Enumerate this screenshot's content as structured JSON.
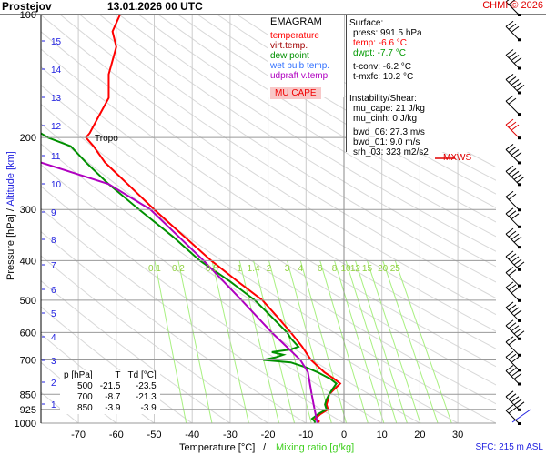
{
  "header": {
    "station": "Prostejov",
    "datetime": "13.01.2026 00 UTC",
    "credit": "CHMI © 2026"
  },
  "legend": {
    "title": "EMAGRAM",
    "items": [
      {
        "label": "temperature",
        "color": "#ff0000"
      },
      {
        "label": "virt.temp.",
        "color": "#a00000"
      },
      {
        "label": "dew point",
        "color": "#009000"
      },
      {
        "label": "wet bulb temp.",
        "color": "#3070ff"
      },
      {
        "label": "udpraft v.temp.",
        "color": "#b000c0"
      }
    ],
    "cape_label": "MU CAPE"
  },
  "surface": {
    "title": "Surface:",
    "press": "press: 991.5 hPa",
    "temp": "temp: -6.6 °C",
    "dwpt": "dwpt: -7.7 °C",
    "tconv": "t-conv: -6.2 °C",
    "tmxfc": "t-mxfc: 10.2 °C"
  },
  "instability": {
    "title": "Instability/Shear:",
    "mu_cape": "mu_cape: 21 J/kg",
    "mu_cinh": "mu_cinh: 0 J/kg",
    "bwd_06": "bwd_06: 27.3 m/s",
    "bwd_01": "bwd_01: 9.0 m/s",
    "srh_03": "srh_03: 323 m2/s2"
  },
  "table": {
    "headers": [
      "p [hPa]",
      "T",
      "Td [°C]"
    ],
    "rows": [
      [
        "500",
        "-21.5",
        "-23.5"
      ],
      [
        "700",
        "-8.7",
        "-21.3"
      ],
      [
        "850",
        "-3.9",
        "-3.9"
      ]
    ]
  },
  "annotations": {
    "tropo": "Tropo",
    "mxws": "MXWS",
    "sfc": "SFC: 215 m ASL"
  },
  "chart_data": {
    "type": "line",
    "title": "EMAGRAM",
    "xlabel": "Temperature [°C]",
    "xlabel2": "Mixing ratio [g/kg]",
    "ylabel": "Pressure [hPa]",
    "ylabel2": "Altitude [km]",
    "xlim": [
      -80,
      40
    ],
    "ylim": [
      1000,
      100
    ],
    "x_ticks": [
      "-70",
      "-60",
      "-50",
      "-40",
      "-30",
      "-20",
      "-10",
      "0",
      "10",
      "20",
      "30"
    ],
    "p_ticks": [
      "100",
      "200",
      "300",
      "400",
      "500",
      "600",
      "700",
      "850",
      "925",
      "1000"
    ],
    "km_ticks": [
      "1",
      "2",
      "3",
      "4",
      "5",
      "6",
      "7",
      "8",
      "9",
      "10",
      "11",
      "12",
      "13",
      "14",
      "15"
    ],
    "mixing_ratio_labels": [
      "0.1",
      "0.2",
      "0.5",
      "1",
      "1.4",
      "2",
      "3",
      "4",
      "6",
      "8",
      "10",
      "12",
      "15",
      "20",
      "25"
    ],
    "series": [
      {
        "name": "temperature",
        "color": "#ff0000",
        "points": [
          [
            1000,
            -7
          ],
          [
            990,
            -6.6
          ],
          [
            975,
            -7.6
          ],
          [
            950,
            -6.2
          ],
          [
            925,
            -4.2
          ],
          [
            900,
            -4.6
          ],
          [
            875,
            -4.2
          ],
          [
            850,
            -3.9
          ],
          [
            825,
            -2.5
          ],
          [
            800,
            -1
          ],
          [
            780,
            -2.5
          ],
          [
            750,
            -5.2
          ],
          [
            700,
            -8.7
          ],
          [
            650,
            -11
          ],
          [
            600,
            -14
          ],
          [
            550,
            -17.5
          ],
          [
            500,
            -21.5
          ],
          [
            450,
            -28
          ],
          [
            400,
            -35
          ],
          [
            350,
            -42
          ],
          [
            300,
            -50
          ],
          [
            260,
            -57
          ],
          [
            230,
            -63
          ],
          [
            210,
            -66
          ],
          [
            200,
            -68
          ],
          [
            195,
            -67
          ],
          [
            180,
            -65
          ],
          [
            160,
            -62
          ],
          [
            140,
            -62
          ],
          [
            120,
            -60
          ],
          [
            110,
            -61
          ],
          [
            100,
            -59
          ]
        ]
      },
      {
        "name": "dew point",
        "color": "#009000",
        "points": [
          [
            1000,
            -7.7
          ],
          [
            990,
            -7.7
          ],
          [
            975,
            -8.4
          ],
          [
            950,
            -6.8
          ],
          [
            925,
            -4.6
          ],
          [
            900,
            -5
          ],
          [
            875,
            -4.6
          ],
          [
            850,
            -3.9
          ],
          [
            825,
            -3
          ],
          [
            800,
            -2
          ],
          [
            780,
            -3.5
          ],
          [
            750,
            -7
          ],
          [
            730,
            -10
          ],
          [
            710,
            -14
          ],
          [
            700,
            -21.3
          ],
          [
            690,
            -18
          ],
          [
            680,
            -16
          ],
          [
            670,
            -19
          ],
          [
            660,
            -14
          ],
          [
            650,
            -12
          ],
          [
            620,
            -14
          ],
          [
            600,
            -15
          ],
          [
            550,
            -19
          ],
          [
            500,
            -23.5
          ],
          [
            450,
            -30
          ],
          [
            400,
            -38
          ],
          [
            350,
            -45
          ],
          [
            300,
            -54
          ],
          [
            260,
            -62
          ],
          [
            230,
            -68
          ],
          [
            210,
            -72
          ],
          [
            200,
            -78
          ],
          [
            190,
            -82
          ],
          [
            185,
            -88
          ]
        ]
      },
      {
        "name": "udpraft v.temp.",
        "color": "#b000c0",
        "points": [
          [
            1000,
            -7
          ],
          [
            900,
            -8
          ],
          [
            850,
            -8.5
          ],
          [
            750,
            -9.5
          ],
          [
            700,
            -11.5
          ],
          [
            600,
            -19
          ],
          [
            500,
            -27
          ],
          [
            400,
            -37
          ],
          [
            300,
            -51
          ],
          [
            260,
            -62
          ],
          [
            230,
            -80
          ]
        ]
      }
    ],
    "wind_levels_hpa": [
      100,
      115,
      135,
      155,
      175,
      200,
      230,
      260,
      300,
      330,
      370,
      420,
      460,
      500,
      560,
      620,
      680,
      740,
      800,
      925,
      1000
    ]
  }
}
